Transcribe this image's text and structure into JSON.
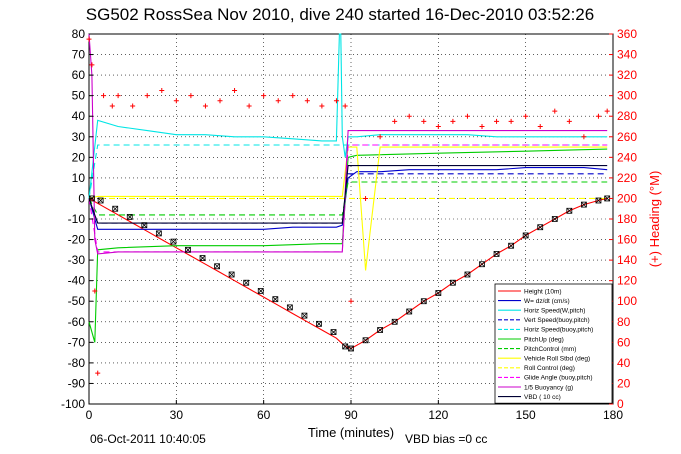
{
  "chart_data": {
    "type": "line",
    "title": "SG502 RossSea Nov 2010, dive 240 started 16-Dec-2010 03:52:26",
    "xlabel": "Time (minutes)",
    "ylabel_right": "(+) Heading (°M)",
    "xlim": [
      0,
      180
    ],
    "ylim_left": [
      -100,
      80
    ],
    "ylim_right": [
      0,
      360
    ],
    "x_ticks": [
      "0",
      "30",
      "60",
      "90",
      "120",
      "150",
      "180"
    ],
    "y_left_ticks": [
      "80",
      "70",
      "60",
      "50",
      "40",
      "30",
      "20",
      "10",
      "0",
      "-10",
      "-20",
      "-30",
      "-40",
      "-50",
      "-60",
      "-70",
      "-80",
      "-90",
      "-100"
    ],
    "y_right_ticks": [
      "360",
      "340",
      "320",
      "300",
      "280",
      "260",
      "240",
      "220",
      "200",
      "180",
      "160",
      "140",
      "120",
      "100",
      "80",
      "60",
      "40",
      "20",
      "0"
    ],
    "grid": true,
    "legend_position": "bottom-right",
    "series": [
      {
        "name": "Height (10m)",
        "color": "#ff0000",
        "x": [
          0,
          5,
          10,
          15,
          20,
          25,
          30,
          35,
          40,
          45,
          50,
          55,
          60,
          65,
          70,
          75,
          80,
          85,
          88,
          90,
          95,
          100,
          105,
          110,
          115,
          120,
          125,
          130,
          135,
          140,
          145,
          150,
          155,
          160,
          165,
          170,
          175,
          178
        ],
        "y": [
          0,
          -4,
          -8,
          -12,
          -16,
          -20,
          -24,
          -28,
          -32,
          -36,
          -40,
          -44,
          -48,
          -52,
          -56,
          -60,
          -64,
          -68,
          -72,
          -73,
          -69,
          -64,
          -60,
          -55,
          -50,
          -46,
          -41,
          -37,
          -32,
          -27,
          -23,
          -18,
          -14,
          -10,
          -6,
          -3,
          -1,
          0
        ]
      },
      {
        "name": "W= dz/dt (cm/s)",
        "color": "#0000cc",
        "x": [
          0,
          3,
          10,
          20,
          30,
          40,
          50,
          60,
          70,
          80,
          85,
          87,
          89,
          92,
          100,
          110,
          120,
          130,
          140,
          150,
          160,
          170,
          178
        ],
        "y": [
          0,
          -15,
          -15,
          -15,
          -15,
          -15,
          -15,
          -15,
          -14,
          -14,
          -14,
          -13,
          10,
          13,
          13,
          14,
          14,
          14,
          14,
          15,
          15,
          15,
          14
        ]
      },
      {
        "name": "Horiz Speed(W,pitch)",
        "color": "#00e5e5",
        "x": [
          0,
          3,
          10,
          20,
          30,
          40,
          50,
          60,
          70,
          80,
          85,
          86,
          86.5,
          87,
          88,
          89,
          92,
          100,
          110,
          120,
          130,
          140,
          150,
          160,
          170,
          178
        ],
        "y": [
          0,
          38,
          35,
          33,
          31,
          31,
          30,
          30,
          29,
          28,
          28,
          80,
          80,
          30,
          20,
          30,
          30,
          31,
          31,
          31,
          31,
          30,
          30,
          30,
          30,
          30
        ]
      },
      {
        "name": "Vert Speed(buoy,pitch)",
        "color": "#0000cc",
        "dash": "6,4",
        "x": [
          0,
          3,
          10,
          30,
          60,
          85,
          87,
          89,
          92,
          120,
          150,
          178
        ],
        "y": [
          0,
          -12,
          -12,
          -12,
          -12,
          -12,
          -12,
          12,
          12,
          12,
          12,
          12
        ]
      },
      {
        "name": "Horiz Speed(buoy,pitch)",
        "color": "#00e5e5",
        "dash": "6,4",
        "x": [
          0,
          3,
          10,
          30,
          60,
          85,
          87,
          89,
          92,
          120,
          150,
          178
        ],
        "y": [
          0,
          26,
          26,
          26,
          26,
          26,
          26,
          26,
          26,
          26,
          26,
          26
        ]
      },
      {
        "name": "PitchUp (deg)",
        "color": "#00cc00",
        "x": [
          0,
          2,
          3,
          10,
          30,
          60,
          80,
          85,
          87,
          89,
          92,
          120,
          150,
          178
        ],
        "y": [
          -60,
          -70,
          -25,
          -24,
          -23,
          -23,
          -22,
          -22,
          -22,
          20,
          21,
          22,
          23,
          24
        ]
      },
      {
        "name": "PitchControl (mm)",
        "color": "#00cc00",
        "dash": "6,4",
        "x": [
          0,
          3,
          10,
          30,
          60,
          85,
          87,
          89,
          92,
          120,
          150,
          178
        ],
        "y": [
          0,
          -8,
          -8,
          -8,
          -8,
          -8,
          -8,
          8,
          8,
          8,
          8,
          8
        ]
      },
      {
        "name": "Vehicle Roll Stbd (deg)",
        "color": "#ffff00",
        "x": [
          0,
          3,
          10,
          20,
          30,
          40,
          50,
          60,
          70,
          80,
          85,
          87,
          89,
          92,
          95,
          100,
          110,
          120,
          130,
          140,
          150,
          160,
          170,
          178
        ],
        "y": [
          0,
          1,
          1,
          1,
          1,
          1,
          1,
          1,
          1,
          1,
          1,
          1,
          25,
          25,
          -35,
          25,
          25,
          25,
          25,
          25,
          25,
          25,
          25,
          25
        ]
      },
      {
        "name": "Roll Control (deg)",
        "color": "#ffff00",
        "dash": "6,4",
        "x": [
          0,
          3,
          30,
          60,
          85,
          87,
          89,
          120,
          150,
          178
        ],
        "y": [
          0,
          0,
          0,
          0,
          0,
          0,
          0,
          0,
          0,
          0
        ]
      },
      {
        "name": "Glide Angle (buoy,pitch)",
        "color": "#ff00ff",
        "dash": "6,4",
        "x": [
          0,
          3,
          10,
          30,
          60,
          85,
          87,
          89,
          92,
          120,
          150,
          178
        ],
        "y": [
          0,
          -26,
          -26,
          -26,
          -26,
          -26,
          -26,
          26,
          26,
          26,
          26,
          26
        ]
      },
      {
        "name": "1/5 Buoyancy (g)",
        "color": "#cc00cc",
        "x": [
          0,
          1,
          2,
          3,
          10,
          30,
          60,
          85,
          87,
          89,
          92,
          120,
          150,
          178
        ],
        "y": [
          80,
          60,
          -20,
          -27,
          -26,
          -26,
          -26,
          -26,
          -26,
          33,
          33,
          33,
          33,
          33
        ]
      },
      {
        "name": "VBD ( 10 cc)",
        "color": "#000033",
        "x": [
          0,
          3,
          10,
          30,
          60,
          85,
          87,
          89,
          92,
          120,
          150,
          178
        ],
        "y": [
          0,
          -12,
          -12,
          -12,
          -12,
          -12,
          -12,
          16,
          16,
          16,
          16,
          16
        ]
      }
    ],
    "heading": {
      "name": "(+) Heading",
      "axis": "right",
      "color": "#ff0000",
      "x": [
        0,
        1,
        2,
        3,
        5,
        8,
        10,
        15,
        20,
        25,
        30,
        35,
        40,
        45,
        50,
        55,
        60,
        65,
        70,
        75,
        80,
        85,
        88,
        90,
        95,
        100,
        105,
        110,
        115,
        120,
        125,
        130,
        135,
        140,
        145,
        150,
        155,
        160,
        165,
        170,
        175,
        178
      ],
      "y": [
        355,
        330,
        110,
        30,
        300,
        290,
        300,
        290,
        300,
        305,
        295,
        300,
        290,
        295,
        305,
        290,
        300,
        295,
        300,
        295,
        290,
        295,
        290,
        100,
        200,
        260,
        275,
        280,
        275,
        270,
        275,
        280,
        270,
        275,
        275,
        280,
        270,
        285,
        275,
        260,
        280,
        285
      ]
    },
    "vbd_markers": {
      "name": "VBD markers",
      "color": "#000000",
      "x": [
        1,
        4,
        9,
        14,
        19,
        24,
        29,
        34,
        39,
        44,
        49,
        54,
        59,
        64,
        69,
        74,
        79,
        84,
        88,
        90,
        95,
        100,
        105,
        110,
        115,
        120,
        125,
        130,
        135,
        140,
        145,
        150,
        155,
        160,
        165,
        170,
        175,
        178
      ],
      "y": [
        0,
        -1,
        -5,
        -9,
        -13,
        -17,
        -21,
        -25,
        -29,
        -33,
        -37,
        -41,
        -45,
        -49,
        -53,
        -57,
        -61,
        -65,
        -72,
        -73,
        -69,
        -64,
        -60,
        -55,
        -50,
        -46,
        -41,
        -37,
        -32,
        -27,
        -23,
        -18,
        -14,
        -10,
        -6,
        -3,
        -1,
        0
      ]
    },
    "footer_date": "06-Oct-2011 10:40:05",
    "footer_note": "VBD bias =0 cc"
  }
}
